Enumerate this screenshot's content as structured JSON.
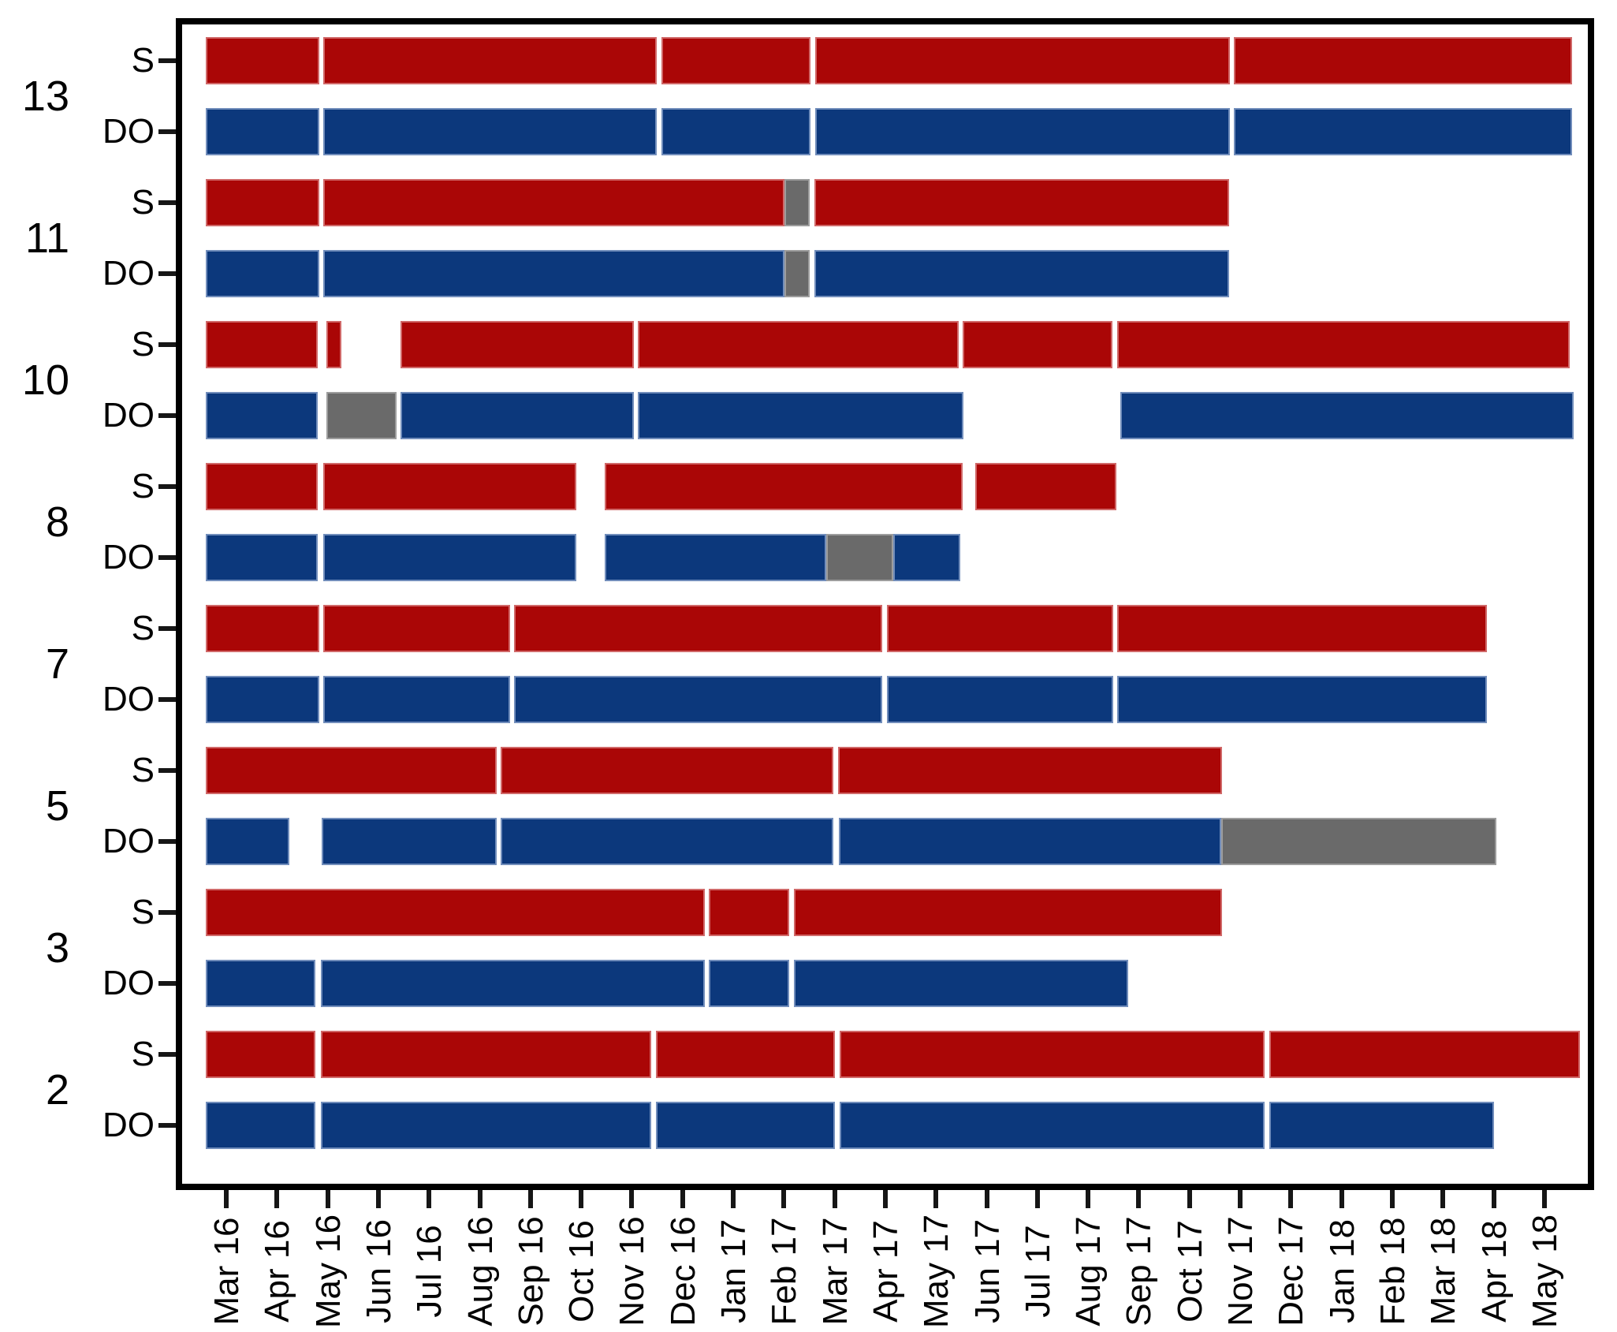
{
  "chart_data": {
    "type": "gantt",
    "title": "",
    "x_axis": {
      "unit": "months; tick 0 = Mar 2016, one tick per month",
      "tick_labels": [
        "Mar 16",
        "Apr 16",
        "May 16",
        "Jun 16",
        "Jul 16",
        "Aug 16",
        "Sep 16",
        "Oct 16",
        "Nov 16",
        "Dec 16",
        "Jan 17",
        "Feb 17",
        "Mar 17",
        "Apr 17",
        "May 17",
        "Jun 17",
        "Jul 17",
        "Aug 17",
        "Sep 17",
        "Oct 17",
        "Nov 17",
        "Dec 17",
        "Jan 18",
        "Feb 18",
        "Mar 18",
        "Apr 18",
        "May 18"
      ],
      "range": [
        -1.0,
        26.95
      ],
      "grid": false
    },
    "y_axis": {
      "row_labels_per_group": [
        "S",
        "DO"
      ],
      "group_labels": [
        "13",
        "11",
        "10",
        "8",
        "7",
        "5",
        "3",
        "2"
      ]
    },
    "colors": {
      "red": "#AA0606",
      "blue": "#0C387C",
      "gray": "#6A6A6A"
    },
    "legend": null,
    "groups": [
      {
        "id": "13",
        "rows": [
          {
            "label": "S",
            "segments": [
              {
                "start": -0.4,
                "end": 1.83,
                "color": "red"
              },
              {
                "start": 1.91,
                "end": 8.5,
                "color": "red"
              },
              {
                "start": 8.58,
                "end": 11.52,
                "color": "red"
              },
              {
                "start": 11.61,
                "end": 19.79,
                "color": "red"
              },
              {
                "start": 19.87,
                "end": 26.55,
                "color": "red"
              }
            ]
          },
          {
            "label": "DO",
            "segments": [
              {
                "start": -0.4,
                "end": 1.83,
                "color": "blue"
              },
              {
                "start": 1.91,
                "end": 8.5,
                "color": "blue"
              },
              {
                "start": 8.58,
                "end": 11.52,
                "color": "blue"
              },
              {
                "start": 11.61,
                "end": 19.79,
                "color": "blue"
              },
              {
                "start": 19.87,
                "end": 26.55,
                "color": "blue"
              }
            ]
          }
        ]
      },
      {
        "id": "11",
        "rows": [
          {
            "label": "S",
            "segments": [
              {
                "start": -0.4,
                "end": 1.83,
                "color": "red"
              },
              {
                "start": 1.91,
                "end": 11.01,
                "color": "red"
              },
              {
                "start": 11.01,
                "end": 11.51,
                "color": "gray"
              },
              {
                "start": 11.6,
                "end": 19.78,
                "color": "red"
              }
            ]
          },
          {
            "label": "DO",
            "segments": [
              {
                "start": -0.4,
                "end": 1.83,
                "color": "blue"
              },
              {
                "start": 1.91,
                "end": 11.01,
                "color": "blue"
              },
              {
                "start": 11.01,
                "end": 11.51,
                "color": "gray"
              },
              {
                "start": 11.6,
                "end": 19.78,
                "color": "blue"
              }
            ]
          }
        ]
      },
      {
        "id": "10",
        "rows": [
          {
            "label": "S",
            "segments": [
              {
                "start": -0.4,
                "end": 1.8,
                "color": "red"
              },
              {
                "start": 1.98,
                "end": 2.27,
                "color": "red"
              },
              {
                "start": 3.44,
                "end": 8.04,
                "color": "red"
              },
              {
                "start": 8.12,
                "end": 14.45,
                "color": "red"
              },
              {
                "start": 14.53,
                "end": 17.48,
                "color": "red"
              },
              {
                "start": 17.57,
                "end": 26.5,
                "color": "red"
              }
            ]
          },
          {
            "label": "DO",
            "segments": [
              {
                "start": -0.4,
                "end": 1.8,
                "color": "blue"
              },
              {
                "start": 1.98,
                "end": 3.36,
                "color": "gray"
              },
              {
                "start": 3.44,
                "end": 8.04,
                "color": "blue"
              },
              {
                "start": 8.12,
                "end": 14.54,
                "color": "blue"
              },
              {
                "start": 17.64,
                "end": 26.58,
                "color": "blue"
              }
            ]
          }
        ]
      },
      {
        "id": "8",
        "rows": [
          {
            "label": "S",
            "segments": [
              {
                "start": -0.4,
                "end": 1.8,
                "color": "red"
              },
              {
                "start": 1.91,
                "end": 6.9,
                "color": "red"
              },
              {
                "start": 7.47,
                "end": 14.52,
                "color": "red"
              },
              {
                "start": 14.78,
                "end": 17.56,
                "color": "red"
              }
            ]
          },
          {
            "label": "DO",
            "segments": [
              {
                "start": -0.4,
                "end": 1.8,
                "color": "blue"
              },
              {
                "start": 1.91,
                "end": 6.9,
                "color": "blue"
              },
              {
                "start": 7.47,
                "end": 11.84,
                "color": "blue"
              },
              {
                "start": 11.84,
                "end": 13.16,
                "color": "gray"
              },
              {
                "start": 13.16,
                "end": 14.48,
                "color": "blue"
              }
            ]
          }
        ]
      },
      {
        "id": "7",
        "rows": [
          {
            "label": "S",
            "segments": [
              {
                "start": -0.4,
                "end": 1.83,
                "color": "red"
              },
              {
                "start": 1.91,
                "end": 5.6,
                "color": "red"
              },
              {
                "start": 5.68,
                "end": 12.94,
                "color": "red"
              },
              {
                "start": 13.03,
                "end": 17.49,
                "color": "red"
              },
              {
                "start": 17.58,
                "end": 24.87,
                "color": "red"
              }
            ]
          },
          {
            "label": "DO",
            "segments": [
              {
                "start": -0.4,
                "end": 1.83,
                "color": "blue"
              },
              {
                "start": 1.91,
                "end": 5.6,
                "color": "blue"
              },
              {
                "start": 5.68,
                "end": 12.94,
                "color": "blue"
              },
              {
                "start": 13.03,
                "end": 17.49,
                "color": "blue"
              },
              {
                "start": 17.58,
                "end": 24.87,
                "color": "blue"
              }
            ]
          }
        ]
      },
      {
        "id": "5",
        "rows": [
          {
            "label": "S",
            "segments": [
              {
                "start": -0.4,
                "end": 5.33,
                "color": "red"
              },
              {
                "start": 5.41,
                "end": 11.97,
                "color": "red"
              },
              {
                "start": 12.06,
                "end": 19.64,
                "color": "red"
              }
            ]
          },
          {
            "label": "DO",
            "segments": [
              {
                "start": -0.4,
                "end": 1.25,
                "color": "blue"
              },
              {
                "start": 1.88,
                "end": 5.33,
                "color": "blue"
              },
              {
                "start": 5.41,
                "end": 11.97,
                "color": "blue"
              },
              {
                "start": 12.09,
                "end": 19.62,
                "color": "blue"
              },
              {
                "start": 19.62,
                "end": 25.05,
                "color": "gray"
              }
            ]
          }
        ]
      },
      {
        "id": "3",
        "rows": [
          {
            "label": "S",
            "segments": [
              {
                "start": -0.4,
                "end": 9.44,
                "color": "red"
              },
              {
                "start": 9.52,
                "end": 11.1,
                "color": "red"
              },
              {
                "start": 11.19,
                "end": 19.64,
                "color": "red"
              }
            ]
          },
          {
            "label": "DO",
            "segments": [
              {
                "start": -0.4,
                "end": 1.76,
                "color": "blue"
              },
              {
                "start": 1.87,
                "end": 9.44,
                "color": "blue"
              },
              {
                "start": 9.52,
                "end": 11.1,
                "color": "blue"
              },
              {
                "start": 11.19,
                "end": 17.79,
                "color": "blue"
              }
            ]
          }
        ]
      },
      {
        "id": "2",
        "rows": [
          {
            "label": "S",
            "segments": [
              {
                "start": -0.4,
                "end": 1.76,
                "color": "red"
              },
              {
                "start": 1.87,
                "end": 8.38,
                "color": "red"
              },
              {
                "start": 8.47,
                "end": 12.01,
                "color": "red"
              },
              {
                "start": 12.1,
                "end": 20.48,
                "color": "red"
              },
              {
                "start": 20.57,
                "end": 26.7,
                "color": "red"
              }
            ]
          },
          {
            "label": "DO",
            "segments": [
              {
                "start": -0.4,
                "end": 1.76,
                "color": "blue"
              },
              {
                "start": 1.87,
                "end": 8.38,
                "color": "blue"
              },
              {
                "start": 8.47,
                "end": 12.01,
                "color": "blue"
              },
              {
                "start": 12.1,
                "end": 20.48,
                "color": "blue"
              },
              {
                "start": 20.57,
                "end": 25.01,
                "color": "blue"
              }
            ]
          }
        ]
      }
    ]
  }
}
